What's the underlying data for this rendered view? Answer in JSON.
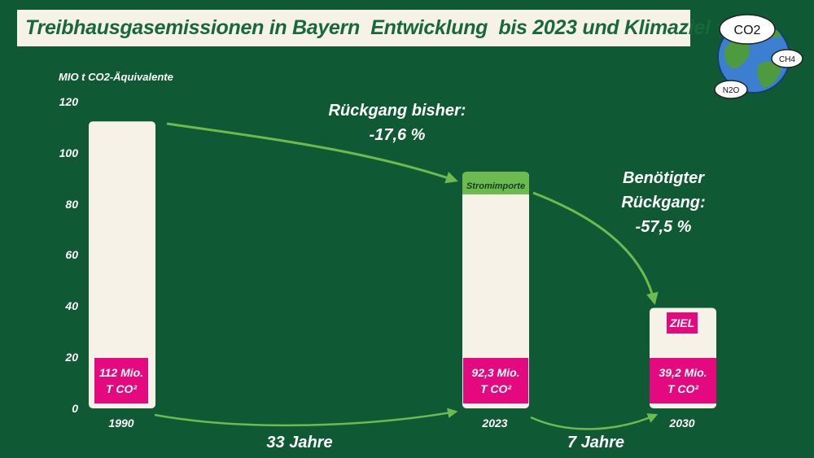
{
  "title": "Treibhausgasemissionen in Bayern  Entwicklung  bis 2023 und Klimaziel",
  "chart_data": {
    "type": "bar",
    "ylabel": "MIO t CO2-Äquivalente",
    "ylim": [
      0,
      120
    ],
    "yticks": [
      "0",
      "20",
      "40",
      "60",
      "80",
      "100",
      "120"
    ],
    "categories": [
      "1990",
      "2023",
      "2030"
    ],
    "values": [
      112,
      92.3,
      39.2
    ],
    "stacked_segment": {
      "category": "2023",
      "label": "Stromimporte",
      "value": 4
    },
    "bar_labels": [
      [
        "112 Mio.",
        "T CO²"
      ],
      [
        "92,3 Mio.",
        "T CO²"
      ],
      [
        "39,2 Mio.",
        "T CO²"
      ]
    ],
    "ziel_label": "ZIEL",
    "grid": false,
    "colors": {
      "bar": "#f6f2e8",
      "stromimporte": "#6dbb4f",
      "label_bg": "#e5097f",
      "arrow": "#6dbb4f",
      "background": "#0f5a34"
    }
  },
  "annotations": {
    "reduction_so_far": [
      "Rückgang bisher:",
      "-17,6 %"
    ],
    "reduction_needed": [
      "Benötigter",
      "Rückgang:",
      "-57,5 %"
    ],
    "span1": "33 Jahre",
    "span2": "7 Jahre"
  },
  "illustration": {
    "name": "earth-globe-icon",
    "labels": [
      "CO2",
      "CH4",
      "N2O"
    ]
  }
}
